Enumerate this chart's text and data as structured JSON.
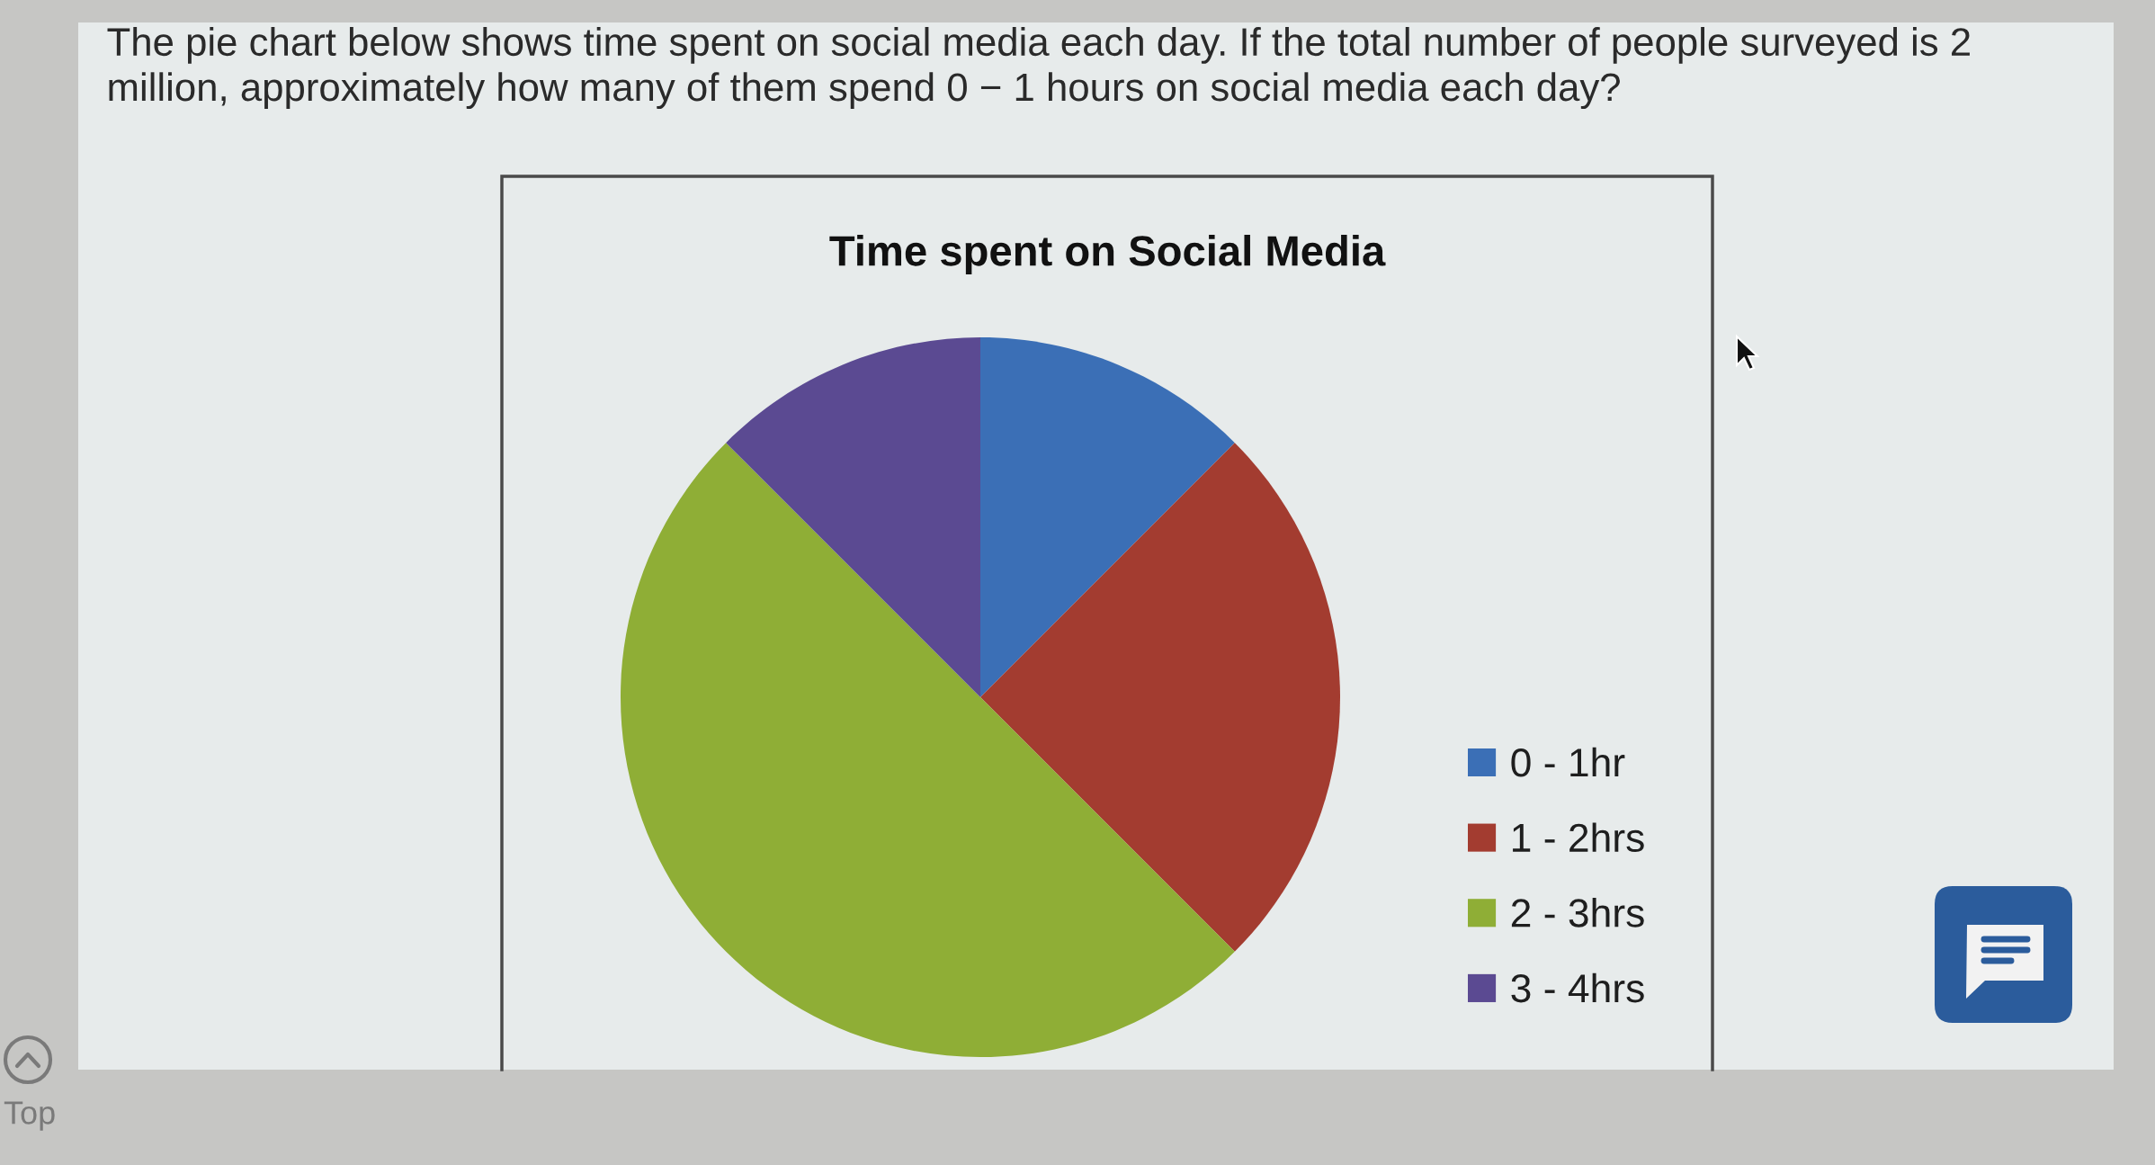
{
  "chart_data": {
    "type": "pie",
    "title": "Time spent on Social Media",
    "categories": [
      "0 - 1hr",
      "1 - 2hrs",
      "2 - 3hrs",
      "3 - 4hrs"
    ],
    "values": [
      12.5,
      25,
      50,
      12.5
    ],
    "colors": [
      "#3b6fb6",
      "#a33c30",
      "#8fae36",
      "#5b4a92"
    ],
    "legend": "right",
    "annotations": [
      "The pie chart below shows time spent on social media each day. If the total number of people surveyed is 2 million, approximately how many of them spend 0 − 1 hours on social media each day?",
      "Top"
    ]
  }
}
